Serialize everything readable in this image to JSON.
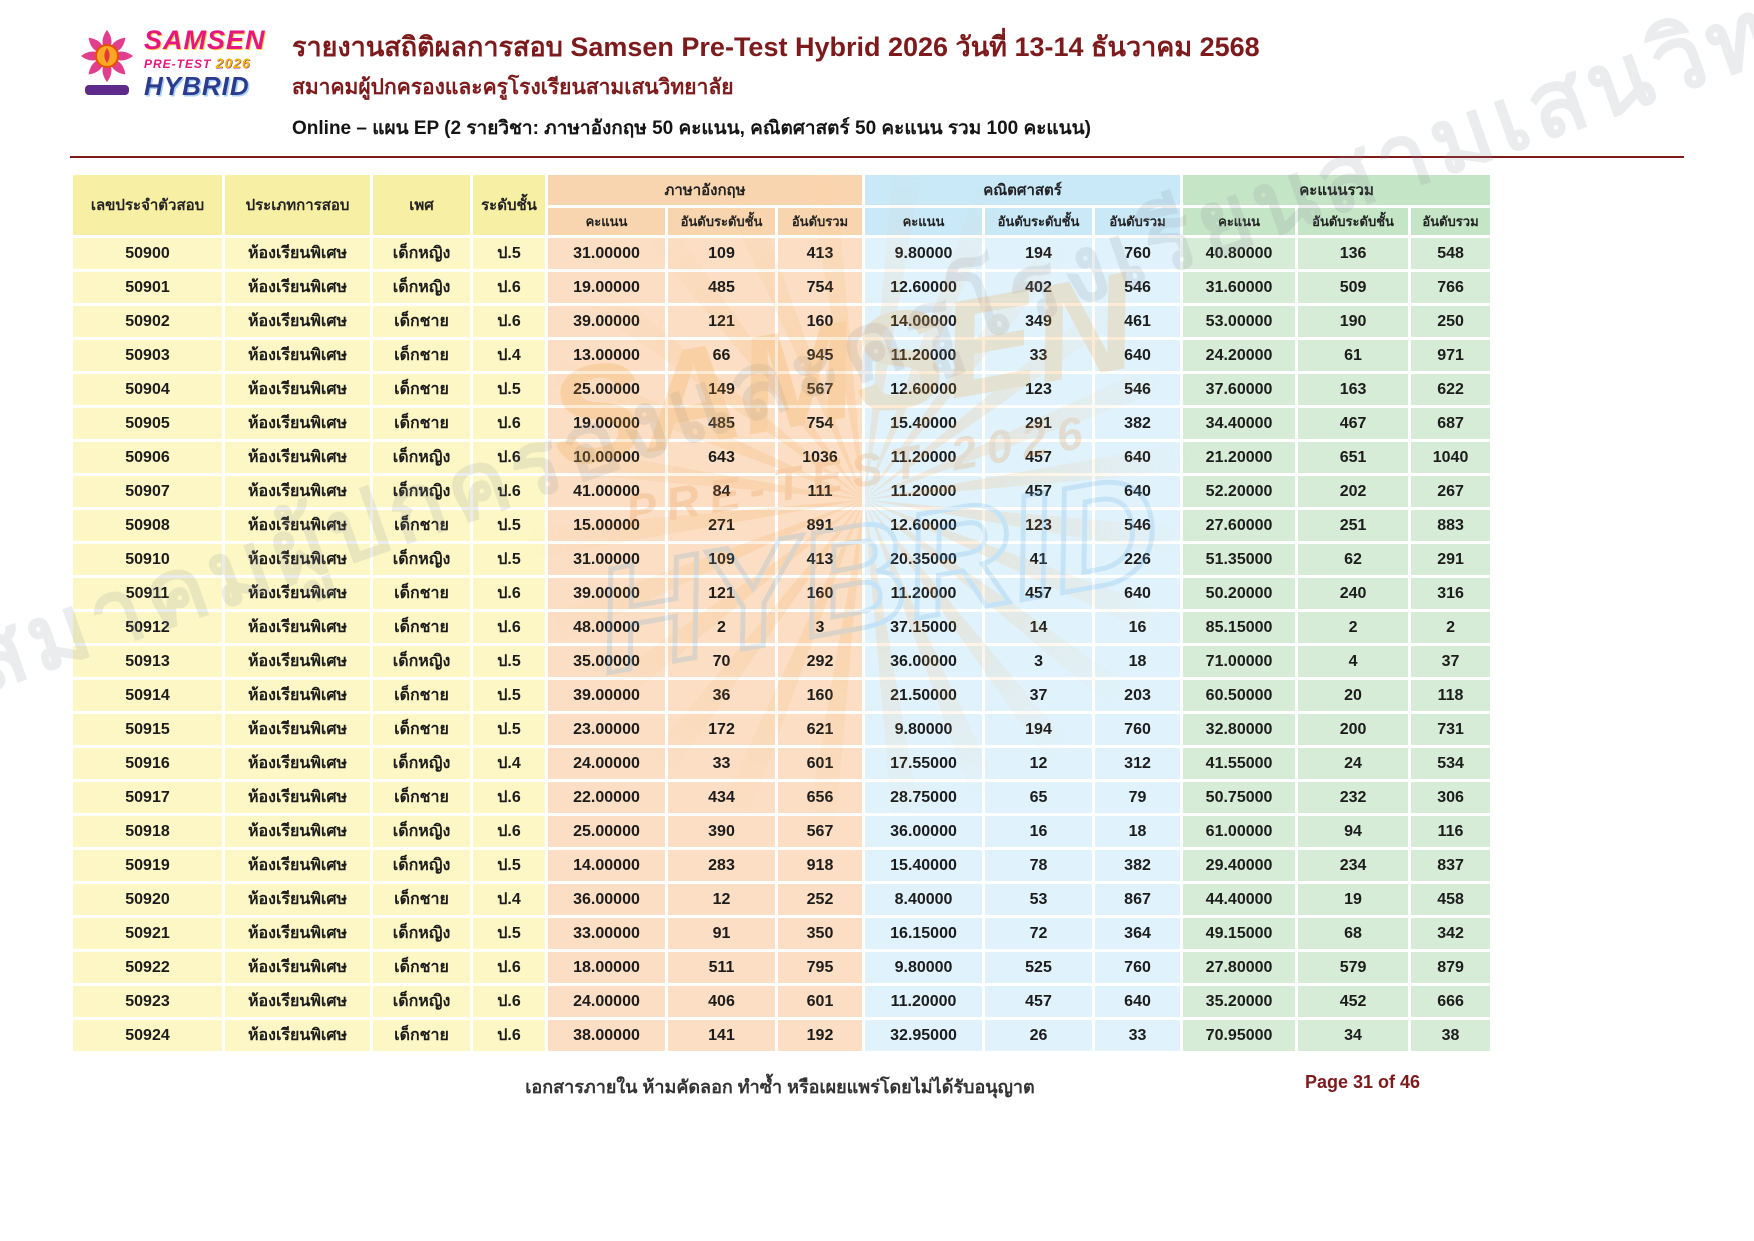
{
  "header": {
    "title": "รายงานสถิติผลการสอบ Samsen Pre-Test Hybrid 2026 วันที่ 13-14 ธันวาคม 2568",
    "subtitle": "สมาคมผู้ปกครองและครูโรงเรียนสามเสนวิทยาลัย",
    "plan_line": "Online – แผน EP (2 รายวิชา: ภาษาอังกฤษ 50 คะแนน, คณิตศาสตร์ 50 คะแนน รวม 100 คะแนน)"
  },
  "logo": {
    "samsen": "SAMSEN",
    "pretest": "PRE-TEST",
    "year": "2026",
    "hybrid": "HYBRID"
  },
  "watermark": {
    "text": "สมาคมผู้ปกครองและครูโรงเรียนสามเสนวิทยาลัย",
    "samsen": "SAMSEN",
    "pretest": "PRE-TEST 2026",
    "hybrid": "HYBRID"
  },
  "table": {
    "columns": {
      "id": "เลขประจำตัวสอบ",
      "exam_type": "ประเภทการสอบ",
      "gender": "เพศ",
      "grade": "ระดับชั้น",
      "groups": [
        {
          "label": "ภาษาอังกฤษ",
          "sub": [
            "คะแนน",
            "อันดับระดับชั้น",
            "อันดับรวม"
          ]
        },
        {
          "label": "คณิตศาสตร์",
          "sub": [
            "คะแนน",
            "อันดับระดับชั้น",
            "อันดับรวม"
          ]
        },
        {
          "label": "คะแนนรวม",
          "sub": [
            "คะแนน",
            "อันดับระดับชั้น",
            "อันดับรวม"
          ]
        }
      ]
    },
    "rows": [
      [
        "50900",
        "ห้องเรียนพิเศษ",
        "เด็กหญิง",
        "ป.5",
        "31.00000",
        "109",
        "413",
        "9.80000",
        "194",
        "760",
        "40.80000",
        "136",
        "548"
      ],
      [
        "50901",
        "ห้องเรียนพิเศษ",
        "เด็กหญิง",
        "ป.6",
        "19.00000",
        "485",
        "754",
        "12.60000",
        "402",
        "546",
        "31.60000",
        "509",
        "766"
      ],
      [
        "50902",
        "ห้องเรียนพิเศษ",
        "เด็กชาย",
        "ป.6",
        "39.00000",
        "121",
        "160",
        "14.00000",
        "349",
        "461",
        "53.00000",
        "190",
        "250"
      ],
      [
        "50903",
        "ห้องเรียนพิเศษ",
        "เด็กชาย",
        "ป.4",
        "13.00000",
        "66",
        "945",
        "11.20000",
        "33",
        "640",
        "24.20000",
        "61",
        "971"
      ],
      [
        "50904",
        "ห้องเรียนพิเศษ",
        "เด็กชาย",
        "ป.5",
        "25.00000",
        "149",
        "567",
        "12.60000",
        "123",
        "546",
        "37.60000",
        "163",
        "622"
      ],
      [
        "50905",
        "ห้องเรียนพิเศษ",
        "เด็กชาย",
        "ป.6",
        "19.00000",
        "485",
        "754",
        "15.40000",
        "291",
        "382",
        "34.40000",
        "467",
        "687"
      ],
      [
        "50906",
        "ห้องเรียนพิเศษ",
        "เด็กหญิง",
        "ป.6",
        "10.00000",
        "643",
        "1036",
        "11.20000",
        "457",
        "640",
        "21.20000",
        "651",
        "1040"
      ],
      [
        "50907",
        "ห้องเรียนพิเศษ",
        "เด็กหญิง",
        "ป.6",
        "41.00000",
        "84",
        "111",
        "11.20000",
        "457",
        "640",
        "52.20000",
        "202",
        "267"
      ],
      [
        "50908",
        "ห้องเรียนพิเศษ",
        "เด็กชาย",
        "ป.5",
        "15.00000",
        "271",
        "891",
        "12.60000",
        "123",
        "546",
        "27.60000",
        "251",
        "883"
      ],
      [
        "50910",
        "ห้องเรียนพิเศษ",
        "เด็กหญิง",
        "ป.5",
        "31.00000",
        "109",
        "413",
        "20.35000",
        "41",
        "226",
        "51.35000",
        "62",
        "291"
      ],
      [
        "50911",
        "ห้องเรียนพิเศษ",
        "เด็กชาย",
        "ป.6",
        "39.00000",
        "121",
        "160",
        "11.20000",
        "457",
        "640",
        "50.20000",
        "240",
        "316"
      ],
      [
        "50912",
        "ห้องเรียนพิเศษ",
        "เด็กชาย",
        "ป.6",
        "48.00000",
        "2",
        "3",
        "37.15000",
        "14",
        "16",
        "85.15000",
        "2",
        "2"
      ],
      [
        "50913",
        "ห้องเรียนพิเศษ",
        "เด็กหญิง",
        "ป.5",
        "35.00000",
        "70",
        "292",
        "36.00000",
        "3",
        "18",
        "71.00000",
        "4",
        "37"
      ],
      [
        "50914",
        "ห้องเรียนพิเศษ",
        "เด็กชาย",
        "ป.5",
        "39.00000",
        "36",
        "160",
        "21.50000",
        "37",
        "203",
        "60.50000",
        "20",
        "118"
      ],
      [
        "50915",
        "ห้องเรียนพิเศษ",
        "เด็กชาย",
        "ป.5",
        "23.00000",
        "172",
        "621",
        "9.80000",
        "194",
        "760",
        "32.80000",
        "200",
        "731"
      ],
      [
        "50916",
        "ห้องเรียนพิเศษ",
        "เด็กหญิง",
        "ป.4",
        "24.00000",
        "33",
        "601",
        "17.55000",
        "12",
        "312",
        "41.55000",
        "24",
        "534"
      ],
      [
        "50917",
        "ห้องเรียนพิเศษ",
        "เด็กชาย",
        "ป.6",
        "22.00000",
        "434",
        "656",
        "28.75000",
        "65",
        "79",
        "50.75000",
        "232",
        "306"
      ],
      [
        "50918",
        "ห้องเรียนพิเศษ",
        "เด็กหญิง",
        "ป.6",
        "25.00000",
        "390",
        "567",
        "36.00000",
        "16",
        "18",
        "61.00000",
        "94",
        "116"
      ],
      [
        "50919",
        "ห้องเรียนพิเศษ",
        "เด็กหญิง",
        "ป.5",
        "14.00000",
        "283",
        "918",
        "15.40000",
        "78",
        "382",
        "29.40000",
        "234",
        "837"
      ],
      [
        "50920",
        "ห้องเรียนพิเศษ",
        "เด็กชาย",
        "ป.4",
        "36.00000",
        "12",
        "252",
        "8.40000",
        "53",
        "867",
        "44.40000",
        "19",
        "458"
      ],
      [
        "50921",
        "ห้องเรียนพิเศษ",
        "เด็กหญิง",
        "ป.5",
        "33.00000",
        "91",
        "350",
        "16.15000",
        "72",
        "364",
        "49.15000",
        "68",
        "342"
      ],
      [
        "50922",
        "ห้องเรียนพิเศษ",
        "เด็กชาย",
        "ป.6",
        "18.00000",
        "511",
        "795",
        "9.80000",
        "525",
        "760",
        "27.80000",
        "579",
        "879"
      ],
      [
        "50923",
        "ห้องเรียนพิเศษ",
        "เด็กหญิง",
        "ป.6",
        "24.00000",
        "406",
        "601",
        "11.20000",
        "457",
        "640",
        "35.20000",
        "452",
        "666"
      ],
      [
        "50924",
        "ห้องเรียนพิเศษ",
        "เด็กชาย",
        "ป.6",
        "38.00000",
        "141",
        "192",
        "32.95000",
        "26",
        "33",
        "70.95000",
        "34",
        "38"
      ]
    ]
  },
  "footer": {
    "notice": "เอกสารภายใน ห้ามคัดลอก ทำซ้ำ หรือเผยแพร่โดยไม่ได้รับอนุญาต",
    "page": "Page 31 of 46"
  },
  "colors": {
    "title_maroon": "#7D1A1C",
    "id_column": "#FCF7C5",
    "english_column": "#FBDEC3",
    "math_column": "#E0F3FD",
    "total_column": "#D6ECD7",
    "logo_pink": "#E6157F",
    "logo_blue": "#2D3B8E"
  }
}
